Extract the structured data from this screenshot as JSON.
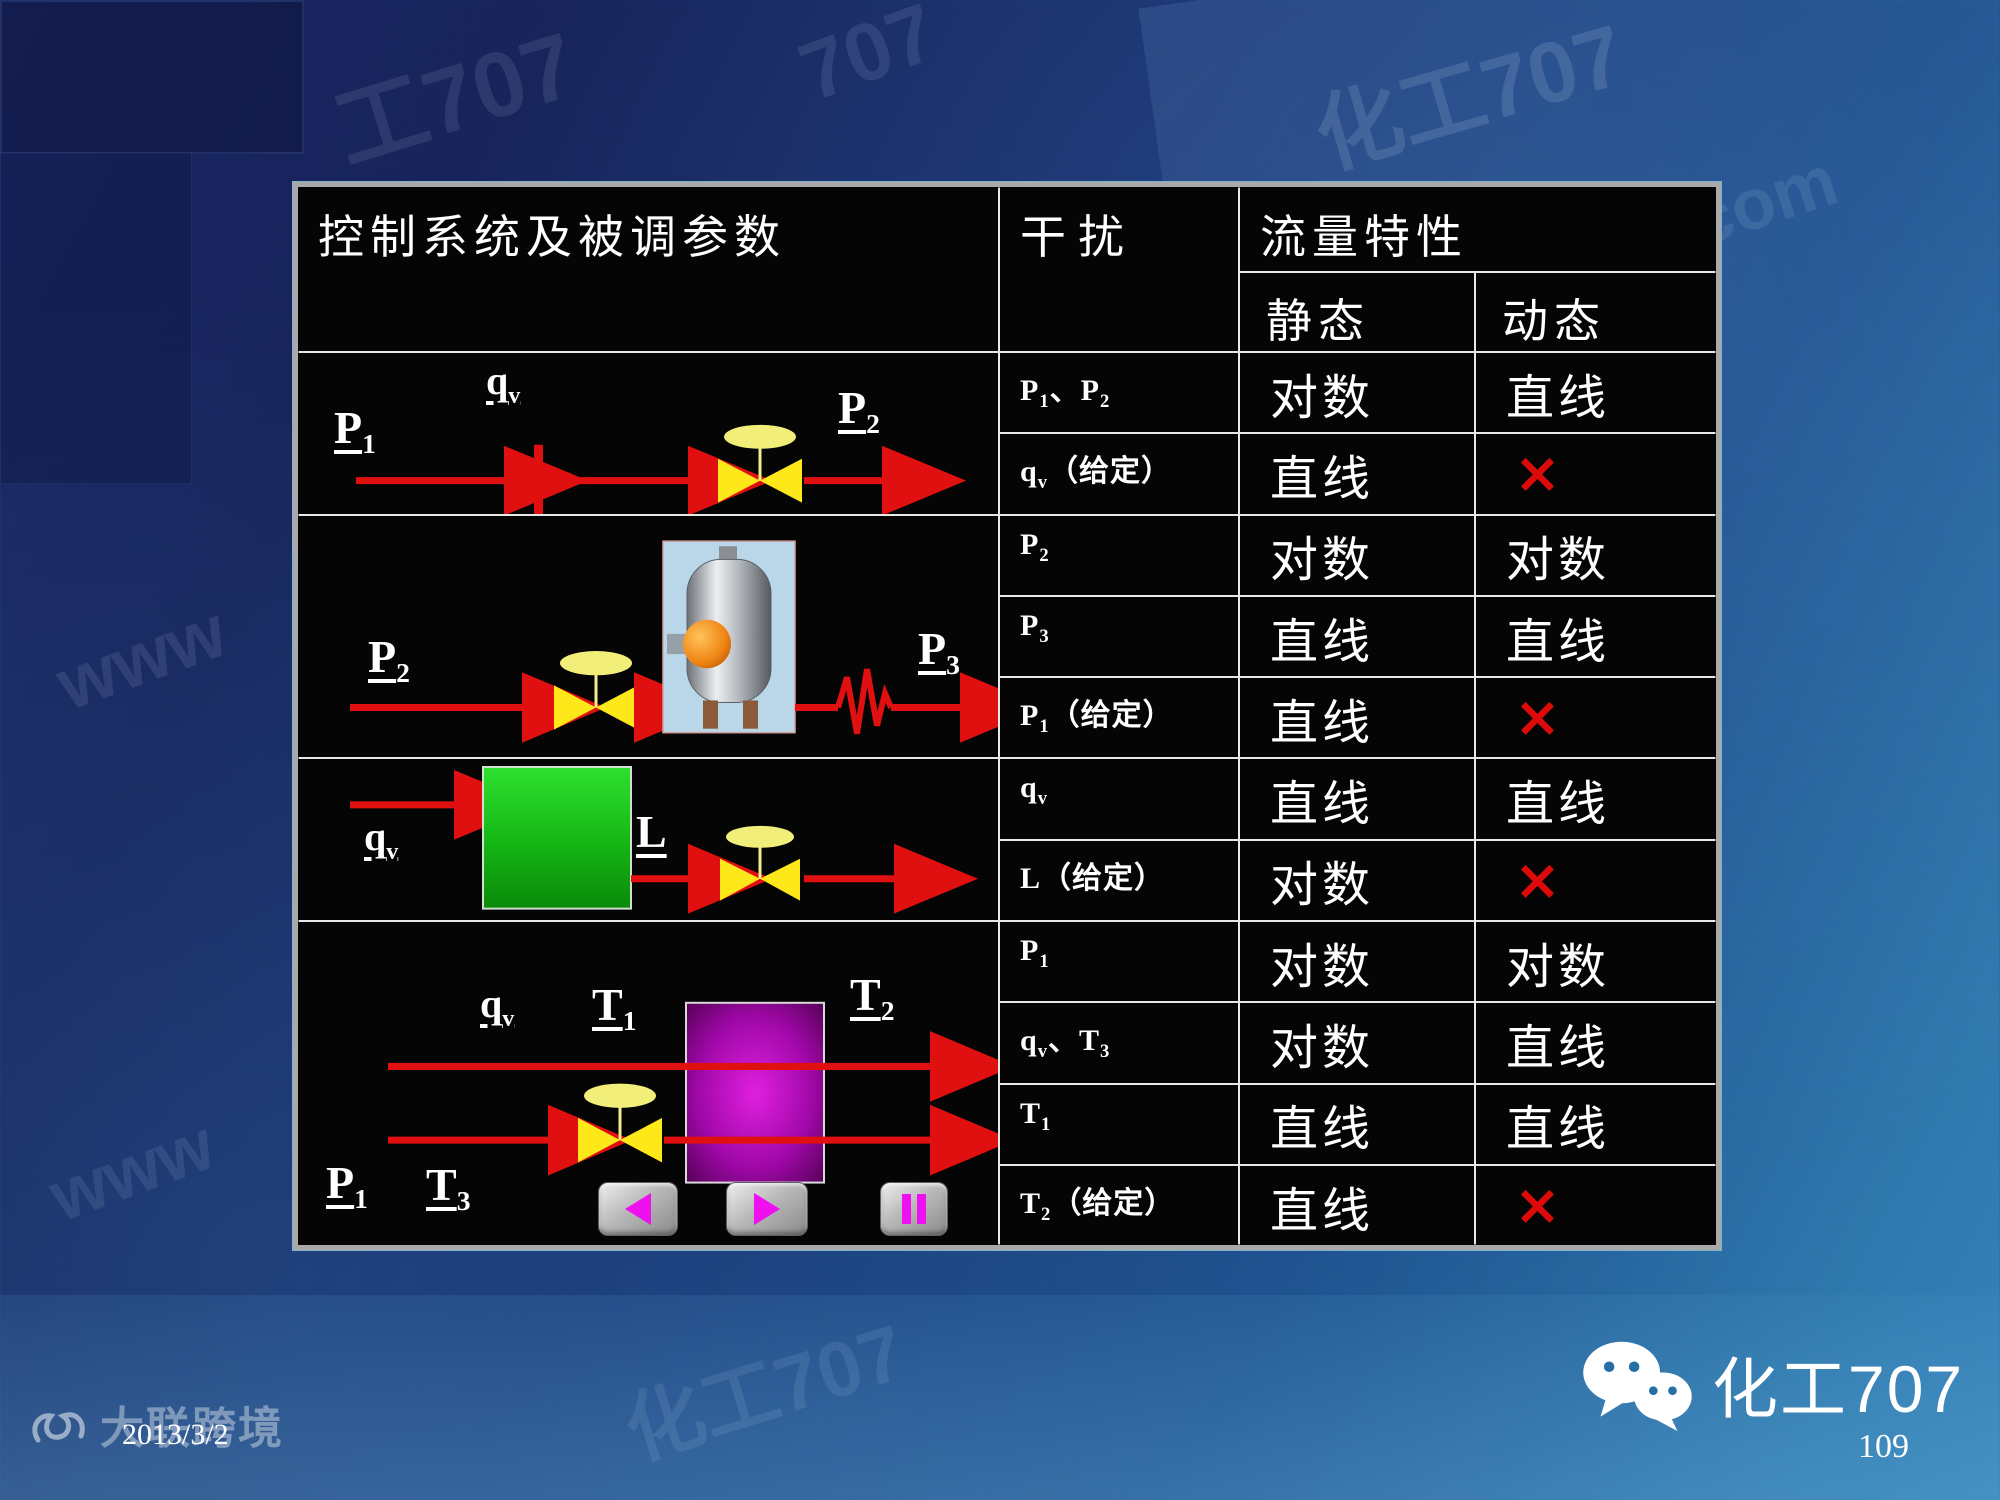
{
  "table": {
    "headers": {
      "system": "控制系统及被调参数",
      "disturbance": "干扰",
      "flow": "流量特性",
      "static": "静态",
      "dynamic": "动态"
    },
    "rows": [
      {
        "disturbance": "P|1、P|2",
        "static": "对数",
        "dynamic": "直线"
      },
      {
        "disturbance": "q|v（给定）",
        "static": "直线",
        "dynamic": "×"
      },
      {
        "disturbance": "P|2",
        "static": "对数",
        "dynamic": "对数"
      },
      {
        "disturbance": "P|3",
        "static": "直线",
        "dynamic": "直线"
      },
      {
        "disturbance": "P|1（给定）",
        "static": "直线",
        "dynamic": "×"
      },
      {
        "disturbance": "q|v",
        "static": "直线",
        "dynamic": "直线"
      },
      {
        "disturbance": "L（给定）",
        "static": "对数",
        "dynamic": "×"
      },
      {
        "disturbance": "P|1",
        "static": "对数",
        "dynamic": "对数"
      },
      {
        "disturbance": "q|v、T|3",
        "static": "对数",
        "dynamic": "直线"
      },
      {
        "disturbance": "T|1",
        "static": "直线",
        "dynamic": "直线"
      },
      {
        "disturbance": "T|2（给定）",
        "static": "直线",
        "dynamic": "×"
      }
    ]
  },
  "diagrams": {
    "d1": {
      "labels": {
        "p1": "P|1",
        "qv": "q|v",
        "p2": "P|2"
      }
    },
    "d2": {
      "labels": {
        "p2": "P|2",
        "p3": "P|3"
      }
    },
    "d3": {
      "labels": {
        "qv": "q|v",
        "l": "L"
      }
    },
    "d4": {
      "labels": {
        "qv": "q|v",
        "t1": "T|1",
        "t2": "T|2",
        "p1": "P|1",
        "t3": "T|3"
      }
    }
  },
  "icons": {
    "back": "left-triangle",
    "forward": "right-triangle",
    "pause": "double-bars",
    "wechat": "chat-bubbles"
  },
  "watermarks": [
    "工707",
    "707",
    "化工707",
    "com",
    "www",
    "化工707",
    "707",
    "www",
    "化工707"
  ],
  "footer": {
    "date": "2013/3/2",
    "page": "109",
    "brand": "化工707",
    "corner_watermark": "大联跨境"
  },
  "colors": {
    "line_red": "#e01010",
    "valve_yellow": "#ffe81a",
    "cross_red": "#dd0a0a"
  }
}
